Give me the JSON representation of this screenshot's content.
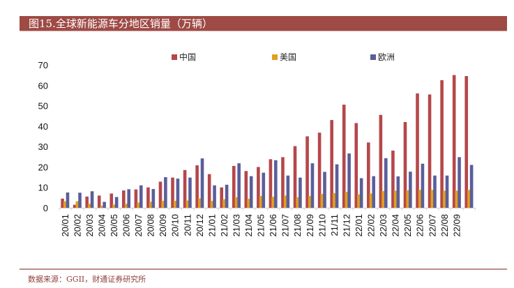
{
  "header": {
    "title": "图15.全球新能源车分地区销量（万辆）"
  },
  "footer": {
    "source": "数据来源：GGII，财通证券研究所"
  },
  "chart_data": {
    "type": "bar",
    "title": "图15.全球新能源车分地区销量（万辆）",
    "xlabel": "",
    "ylabel": "",
    "ylim": [
      0,
      70
    ],
    "yticks": [
      0,
      10,
      20,
      30,
      40,
      50,
      60,
      70
    ],
    "grid": false,
    "legend_position": "top",
    "categories": [
      "20/01",
      "20/02",
      "20/03",
      "20/04",
      "20/05",
      "20/06",
      "20/07",
      "20/08",
      "20/09",
      "20/10",
      "20/11",
      "20/12",
      "21/01",
      "21/02",
      "21/03",
      "21/04",
      "21/05",
      "21/06",
      "21/07",
      "21/08",
      "21/09",
      "21/10",
      "21/11",
      "21/12",
      "22/01",
      "22/02",
      "22/03",
      "22/04",
      "22/05",
      "22/06",
      "22/07",
      "22/08",
      "22/09",
      ""
    ],
    "series": [
      {
        "name": "中国",
        "color": "#b5474a",
        "values": [
          4.5,
          1.5,
          5.5,
          6,
          7,
          8.5,
          9,
          10,
          12.8,
          14.8,
          18.5,
          20.8,
          16.5,
          10,
          20.5,
          18,
          20,
          23.8,
          24.8,
          30.2,
          35,
          36.8,
          43,
          50.5,
          41.5,
          32,
          45.5,
          28,
          42,
          56,
          55.5,
          62.5,
          65,
          64.5
        ]
      },
      {
        "name": "美国",
        "color": "#e1a020",
        "values": [
          3.2,
          3.2,
          2,
          1,
          1.6,
          2,
          2.6,
          3,
          3.4,
          3.4,
          3.6,
          4.6,
          3.4,
          4.2,
          5.2,
          4.4,
          5.8,
          5.4,
          6,
          5.2,
          5.8,
          6.8,
          7.2,
          7.8,
          6.6,
          7,
          8.2,
          8.4,
          8.6,
          8.8,
          8.8,
          8.4,
          8.4,
          8.8
        ]
      },
      {
        "name": "欧洲",
        "color": "#5a5e9a",
        "values": [
          7.5,
          7.4,
          8.1,
          2.9,
          5.3,
          9.1,
          11,
          9.2,
          15,
          14.3,
          14.8,
          24.2,
          11,
          11.3,
          21.8,
          15.5,
          17.2,
          23.3,
          15.8,
          14.8,
          21.8,
          17.6,
          21.3,
          26.6,
          14.5,
          15.5,
          24.3,
          15.4,
          17.7,
          21.6,
          15.8,
          15.8,
          24.8,
          21
        ]
      }
    ]
  }
}
